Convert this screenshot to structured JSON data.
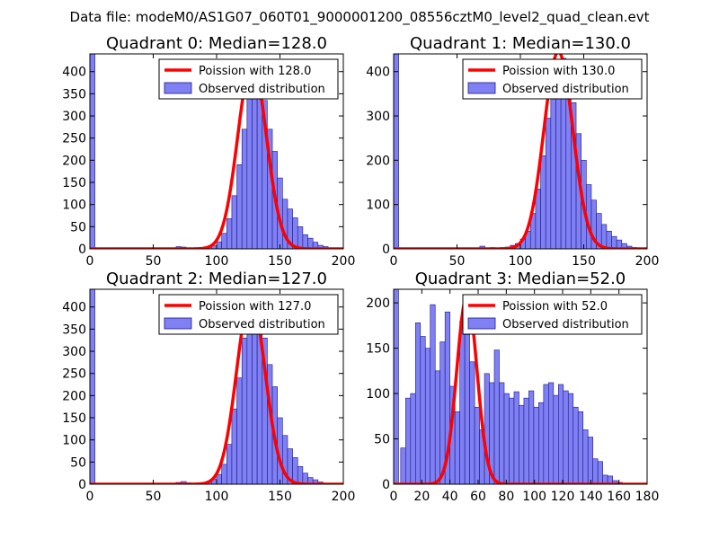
{
  "figure": {
    "suptitle": "Data file: modeM0/AS1G07_060T01_9000001200_08556cztM0_level2_quad_clean.evt"
  },
  "colors": {
    "bar_fill": "#8080f5",
    "bar_edge": "#1a1a80",
    "curve": "#ff0000",
    "background": "#ffffff"
  },
  "chart_data": [
    {
      "type": "bar",
      "title": "Quadrant 0: Median=128.0",
      "median": 128.0,
      "xlim": [
        0,
        200
      ],
      "ylim": [
        0,
        440
      ],
      "xticks": [
        0,
        50,
        100,
        150,
        200
      ],
      "yticks": [
        0,
        50,
        100,
        150,
        200,
        250,
        300,
        350,
        400
      ],
      "legend": [
        "Poission with 128.0",
        "Observed distribution"
      ],
      "legend_position": "top-right",
      "curve_peak": 420,
      "bin_width": 4,
      "bars": [
        [
          0,
          440
        ],
        [
          68,
          5
        ],
        [
          72,
          4
        ],
        [
          76,
          2
        ],
        [
          80,
          1
        ],
        [
          84,
          2
        ],
        [
          88,
          1
        ],
        [
          92,
          4
        ],
        [
          96,
          7
        ],
        [
          100,
          16
        ],
        [
          104,
          35
        ],
        [
          108,
          68
        ],
        [
          112,
          120
        ],
        [
          116,
          190
        ],
        [
          120,
          270
        ],
        [
          124,
          360
        ],
        [
          128,
          400
        ],
        [
          132,
          370
        ],
        [
          136,
          335
        ],
        [
          140,
          270
        ],
        [
          144,
          220
        ],
        [
          148,
          160
        ],
        [
          152,
          112
        ],
        [
          156,
          90
        ],
        [
          160,
          70
        ],
        [
          164,
          50
        ],
        [
          168,
          32
        ],
        [
          172,
          24
        ],
        [
          176,
          15
        ],
        [
          180,
          8
        ],
        [
          184,
          5
        ],
        [
          188,
          2
        ]
      ]
    },
    {
      "type": "bar",
      "title": "Quadrant 1: Median=130.0",
      "median": 130.0,
      "xlim": [
        0,
        200
      ],
      "ylim": [
        0,
        440
      ],
      "xticks": [
        0,
        50,
        100,
        150,
        200
      ],
      "yticks": [
        0,
        100,
        200,
        300,
        400
      ],
      "legend": [
        "Poission with 130.0",
        "Observed distribution"
      ],
      "legend_position": "top-right",
      "curve_peak": 445,
      "bin_width": 4,
      "bars": [
        [
          0,
          440
        ],
        [
          68,
          6
        ],
        [
          72,
          2
        ],
        [
          76,
          3
        ],
        [
          80,
          2
        ],
        [
          84,
          3
        ],
        [
          88,
          4
        ],
        [
          92,
          8
        ],
        [
          96,
          12
        ],
        [
          100,
          22
        ],
        [
          104,
          40
        ],
        [
          108,
          80
        ],
        [
          112,
          135
        ],
        [
          116,
          210
        ],
        [
          120,
          295
        ],
        [
          124,
          370
        ],
        [
          128,
          410
        ],
        [
          132,
          430
        ],
        [
          136,
          380
        ],
        [
          140,
          330
        ],
        [
          144,
          260
        ],
        [
          148,
          200
        ],
        [
          152,
          145
        ],
        [
          156,
          110
        ],
        [
          160,
          80
        ],
        [
          164,
          55
        ],
        [
          168,
          40
        ],
        [
          172,
          28
        ],
        [
          176,
          20
        ],
        [
          180,
          12
        ],
        [
          184,
          6
        ],
        [
          188,
          3
        ]
      ]
    },
    {
      "type": "bar",
      "title": "Quadrant 2: Median=127.0",
      "median": 127.0,
      "xlim": [
        0,
        200
      ],
      "ylim": [
        0,
        440
      ],
      "xticks": [
        0,
        50,
        100,
        150,
        200
      ],
      "yticks": [
        0,
        50,
        100,
        150,
        200,
        250,
        300,
        350,
        400
      ],
      "legend": [
        "Poission with 127.0",
        "Observed distribution"
      ],
      "legend_position": "top-right",
      "curve_peak": 420,
      "bin_width": 4,
      "bars": [
        [
          0,
          440
        ],
        [
          68,
          4
        ],
        [
          72,
          6
        ],
        [
          76,
          3
        ],
        [
          80,
          2
        ],
        [
          84,
          1
        ],
        [
          88,
          3
        ],
        [
          92,
          6
        ],
        [
          96,
          12
        ],
        [
          100,
          22
        ],
        [
          104,
          45
        ],
        [
          108,
          90
        ],
        [
          112,
          170
        ],
        [
          116,
          240
        ],
        [
          120,
          330
        ],
        [
          124,
          390
        ],
        [
          128,
          420
        ],
        [
          132,
          380
        ],
        [
          136,
          330
        ],
        [
          140,
          270
        ],
        [
          144,
          220
        ],
        [
          148,
          150
        ],
        [
          152,
          110
        ],
        [
          156,
          80
        ],
        [
          160,
          60
        ],
        [
          164,
          40
        ],
        [
          168,
          25
        ],
        [
          172,
          15
        ],
        [
          176,
          10
        ],
        [
          180,
          5
        ],
        [
          184,
          2
        ]
      ]
    },
    {
      "type": "bar",
      "title": "Quadrant 3: Median=52.0",
      "median": 52.0,
      "xlim": [
        0,
        180
      ],
      "ylim": [
        0,
        215
      ],
      "xticks": [
        0,
        20,
        40,
        60,
        80,
        100,
        120,
        140,
        160,
        180
      ],
      "yticks": [
        0,
        50,
        100,
        150,
        200
      ],
      "legend": [
        "Poission with 52.0",
        "Observed distribution"
      ],
      "legend_position": "top-right",
      "curve_peak": 207,
      "bin_width": 3.5,
      "bars": [
        [
          0,
          215
        ],
        [
          5,
          40
        ],
        [
          8.5,
          95
        ],
        [
          12,
          100
        ],
        [
          15.5,
          178
        ],
        [
          19,
          163
        ],
        [
          22.5,
          150
        ],
        [
          26,
          198
        ],
        [
          29.5,
          125
        ],
        [
          33,
          157
        ],
        [
          36.5,
          190
        ],
        [
          40,
          108
        ],
        [
          43.5,
          80
        ],
        [
          47,
          180
        ],
        [
          50.5,
          165
        ],
        [
          54,
          135
        ],
        [
          57.5,
          85
        ],
        [
          61,
          60
        ],
        [
          64.5,
          122
        ],
        [
          68,
          112
        ],
        [
          71.5,
          148
        ],
        [
          75,
          112
        ],
        [
          78.5,
          100
        ],
        [
          82,
          95
        ],
        [
          85.5,
          102
        ],
        [
          89,
          87
        ],
        [
          92.5,
          95
        ],
        [
          96,
          103
        ],
        [
          99.5,
          85
        ],
        [
          103,
          90
        ],
        [
          106.5,
          110
        ],
        [
          110,
          112
        ],
        [
          113.5,
          98
        ],
        [
          117,
          110
        ],
        [
          120.5,
          103
        ],
        [
          124,
          100
        ],
        [
          127.5,
          85
        ],
        [
          131,
          80
        ],
        [
          134.5,
          60
        ],
        [
          138,
          52
        ],
        [
          141.5,
          28
        ],
        [
          145,
          25
        ],
        [
          148.5,
          10
        ],
        [
          152,
          9
        ],
        [
          155.5,
          4
        ],
        [
          159,
          2
        ],
        [
          162.5,
          1
        ],
        [
          166,
          1
        ]
      ]
    }
  ]
}
